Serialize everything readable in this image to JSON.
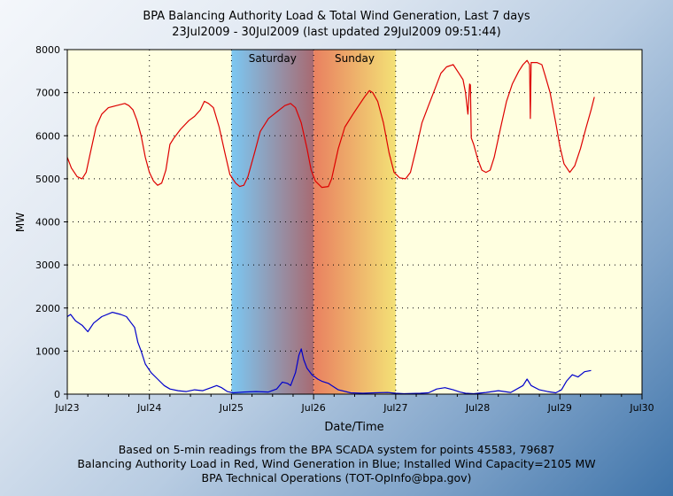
{
  "title": "BPA Balancing Authority Load & Total Wind Generation, Last 7 days",
  "subtitle": "23Jul2009 - 30Jul2009 (last updated 29Jul2009 09:51:44)",
  "footer": {
    "line1": "Based on 5-min readings from the BPA SCADA system for points 45583, 79687",
    "line2": "Balancing Authority Load in Red, Wind Generation in Blue; Installed Wind Capacity=2105 MW",
    "line3": "BPA Technical Operations (TOT-OpInfo@bpa.gov)"
  },
  "colors": {
    "plot_bg": "#ffffe0",
    "load": "#dd0000",
    "wind": "#0000cc"
  },
  "chart_data": {
    "type": "line",
    "title": "BPA Balancing Authority Load & Total Wind Generation, Last 7 days",
    "subtitle": "23Jul2009 - 30Jul2009 (last updated 29Jul2009 09:51:44)",
    "xlabel": "Date/Time",
    "ylabel": "MW",
    "x_unit": "days since Jul23 00:00",
    "xlim": [
      0,
      7
    ],
    "ylim": [
      0,
      8000
    ],
    "yticks": [
      0,
      1000,
      2000,
      3000,
      4000,
      5000,
      6000,
      7000,
      8000
    ],
    "xticks": [
      "Jul23",
      "Jul24",
      "Jul25",
      "Jul26",
      "Jul27",
      "Jul28",
      "Jul29",
      "Jul30"
    ],
    "grid": true,
    "weekend_bands": [
      {
        "label": "Saturday",
        "start": 2,
        "end": 3
      },
      {
        "label": "Sunday",
        "start": 3,
        "end": 4
      }
    ],
    "series": [
      {
        "name": "Balancing Authority Load",
        "color": "#dd0000",
        "points": [
          [
            0.0,
            5500
          ],
          [
            0.05,
            5250
          ],
          [
            0.12,
            5050
          ],
          [
            0.18,
            5000
          ],
          [
            0.23,
            5150
          ],
          [
            0.28,
            5600
          ],
          [
            0.35,
            6200
          ],
          [
            0.42,
            6500
          ],
          [
            0.5,
            6650
          ],
          [
            0.6,
            6700
          ],
          [
            0.7,
            6750
          ],
          [
            0.75,
            6700
          ],
          [
            0.8,
            6600
          ],
          [
            0.85,
            6350
          ],
          [
            0.9,
            6000
          ],
          [
            0.95,
            5500
          ],
          [
            1.0,
            5150
          ],
          [
            1.05,
            4950
          ],
          [
            1.1,
            4850
          ],
          [
            1.15,
            4900
          ],
          [
            1.2,
            5200
          ],
          [
            1.25,
            5800
          ],
          [
            1.3,
            5950
          ],
          [
            1.38,
            6150
          ],
          [
            1.48,
            6350
          ],
          [
            1.55,
            6450
          ],
          [
            1.62,
            6600
          ],
          [
            1.67,
            6800
          ],
          [
            1.72,
            6750
          ],
          [
            1.78,
            6650
          ],
          [
            1.85,
            6200
          ],
          [
            1.92,
            5600
          ],
          [
            1.98,
            5100
          ],
          [
            2.05,
            4900
          ],
          [
            2.1,
            4820
          ],
          [
            2.15,
            4850
          ],
          [
            2.2,
            5050
          ],
          [
            2.28,
            5600
          ],
          [
            2.35,
            6100
          ],
          [
            2.45,
            6400
          ],
          [
            2.55,
            6550
          ],
          [
            2.65,
            6700
          ],
          [
            2.72,
            6750
          ],
          [
            2.78,
            6650
          ],
          [
            2.85,
            6300
          ],
          [
            2.92,
            5700
          ],
          [
            2.97,
            5200
          ],
          [
            3.02,
            4950
          ],
          [
            3.1,
            4800
          ],
          [
            3.18,
            4820
          ],
          [
            3.22,
            5000
          ],
          [
            3.3,
            5700
          ],
          [
            3.38,
            6200
          ],
          [
            3.48,
            6500
          ],
          [
            3.55,
            6700
          ],
          [
            3.62,
            6900
          ],
          [
            3.68,
            7050
          ],
          [
            3.72,
            7000
          ],
          [
            3.78,
            6800
          ],
          [
            3.85,
            6300
          ],
          [
            3.92,
            5600
          ],
          [
            3.98,
            5150
          ],
          [
            4.05,
            5020
          ],
          [
            4.12,
            5000
          ],
          [
            4.18,
            5150
          ],
          [
            4.25,
            5700
          ],
          [
            4.32,
            6300
          ],
          [
            4.4,
            6700
          ],
          [
            4.48,
            7100
          ],
          [
            4.55,
            7450
          ],
          [
            4.62,
            7600
          ],
          [
            4.7,
            7650
          ],
          [
            4.77,
            7450
          ],
          [
            4.82,
            7300
          ],
          [
            4.85,
            7000
          ],
          [
            4.88,
            6500
          ],
          [
            4.9,
            7200
          ],
          [
            4.91,
            7180
          ],
          [
            4.92,
            5950
          ],
          [
            4.95,
            5800
          ],
          [
            5.0,
            5450
          ],
          [
            5.05,
            5200
          ],
          [
            5.1,
            5150
          ],
          [
            5.15,
            5200
          ],
          [
            5.2,
            5500
          ],
          [
            5.28,
            6200
          ],
          [
            5.35,
            6800
          ],
          [
            5.42,
            7200
          ],
          [
            5.5,
            7500
          ],
          [
            5.55,
            7650
          ],
          [
            5.6,
            7750
          ],
          [
            5.63,
            7650
          ],
          [
            5.64,
            6400
          ],
          [
            5.65,
            7700
          ],
          [
            5.72,
            7700
          ],
          [
            5.78,
            7650
          ],
          [
            5.82,
            7400
          ],
          [
            5.88,
            7000
          ],
          [
            5.95,
            6300
          ],
          [
            6.0,
            5750
          ],
          [
            6.05,
            5350
          ],
          [
            6.12,
            5150
          ],
          [
            6.18,
            5300
          ],
          [
            6.25,
            5700
          ],
          [
            6.32,
            6200
          ],
          [
            6.38,
            6600
          ],
          [
            6.42,
            6900
          ]
        ]
      },
      {
        "name": "Wind Generation",
        "color": "#0000cc",
        "points": [
          [
            0.0,
            1800
          ],
          [
            0.04,
            1850
          ],
          [
            0.1,
            1700
          ],
          [
            0.18,
            1600
          ],
          [
            0.25,
            1450
          ],
          [
            0.32,
            1650
          ],
          [
            0.42,
            1800
          ],
          [
            0.55,
            1900
          ],
          [
            0.65,
            1850
          ],
          [
            0.72,
            1800
          ],
          [
            0.78,
            1650
          ],
          [
            0.82,
            1550
          ],
          [
            0.86,
            1200
          ],
          [
            0.9,
            1000
          ],
          [
            0.95,
            700
          ],
          [
            1.02,
            500
          ],
          [
            1.1,
            350
          ],
          [
            1.18,
            200
          ],
          [
            1.25,
            120
          ],
          [
            1.35,
            80
          ],
          [
            1.45,
            60
          ],
          [
            1.55,
            100
          ],
          [
            1.65,
            80
          ],
          [
            1.75,
            150
          ],
          [
            1.82,
            200
          ],
          [
            1.88,
            150
          ],
          [
            1.95,
            60
          ],
          [
            2.02,
            30
          ],
          [
            2.15,
            50
          ],
          [
            2.3,
            60
          ],
          [
            2.45,
            50
          ],
          [
            2.55,
            120
          ],
          [
            2.62,
            280
          ],
          [
            2.68,
            250
          ],
          [
            2.72,
            200
          ],
          [
            2.78,
            500
          ],
          [
            2.82,
            900
          ],
          [
            2.85,
            1050
          ],
          [
            2.88,
            800
          ],
          [
            2.92,
            600
          ],
          [
            2.98,
            450
          ],
          [
            3.05,
            350
          ],
          [
            3.1,
            300
          ],
          [
            3.18,
            250
          ],
          [
            3.22,
            200
          ],
          [
            3.3,
            100
          ],
          [
            3.45,
            30
          ],
          [
            3.6,
            20
          ],
          [
            3.75,
            30
          ],
          [
            3.9,
            40
          ],
          [
            4.0,
            20
          ],
          [
            4.1,
            10
          ],
          [
            4.3,
            20
          ],
          [
            4.4,
            30
          ],
          [
            4.5,
            120
          ],
          [
            4.6,
            150
          ],
          [
            4.7,
            100
          ],
          [
            4.78,
            50
          ],
          [
            4.85,
            20
          ],
          [
            4.95,
            10
          ],
          [
            5.1,
            40
          ],
          [
            5.25,
            80
          ],
          [
            5.4,
            40
          ],
          [
            5.55,
            200
          ],
          [
            5.6,
            350
          ],
          [
            5.65,
            200
          ],
          [
            5.75,
            100
          ],
          [
            5.85,
            60
          ],
          [
            5.95,
            30
          ],
          [
            6.02,
            100
          ],
          [
            6.08,
            300
          ],
          [
            6.15,
            450
          ],
          [
            6.22,
            400
          ],
          [
            6.3,
            520
          ],
          [
            6.38,
            550
          ]
        ]
      }
    ]
  }
}
